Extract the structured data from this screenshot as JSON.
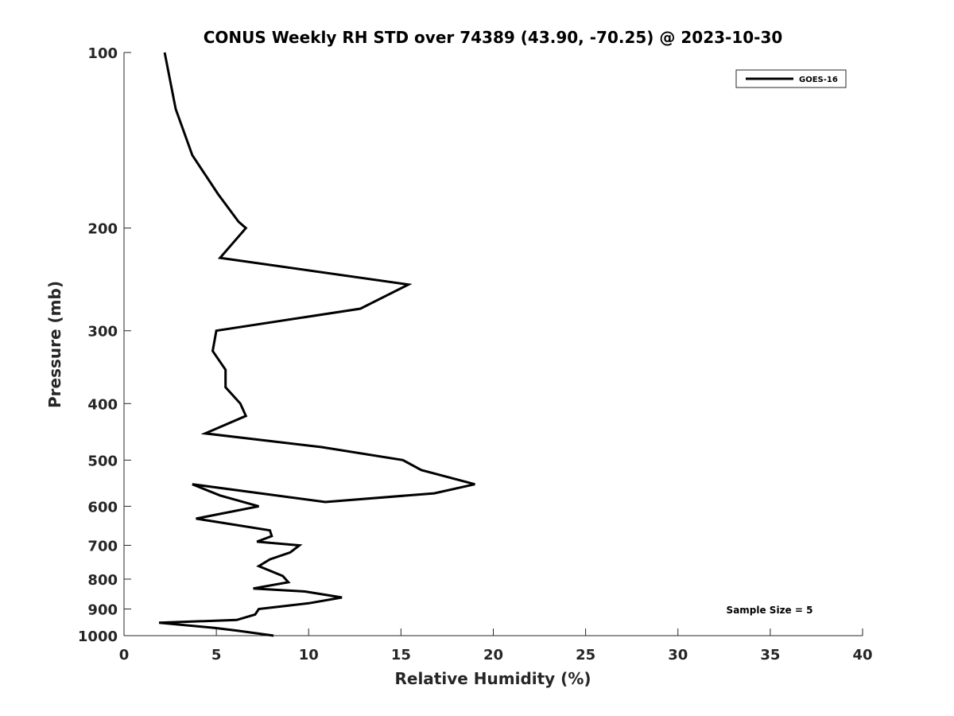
{
  "chart_data": {
    "type": "line",
    "title": "CONUS Weekly RH STD over 74389 (43.90, -70.25) @ 2023-10-30",
    "xlabel": "Relative Humidity (%)",
    "ylabel": "Pressure (mb)",
    "xlim": [
      0,
      40
    ],
    "ylim": [
      100,
      1000
    ],
    "y_scale": "log",
    "y_reversed": true,
    "grid": false,
    "x_ticks": [
      0,
      5,
      10,
      15,
      20,
      25,
      30,
      35,
      40
    ],
    "y_ticks": [
      100,
      200,
      300,
      400,
      500,
      600,
      700,
      800,
      900,
      1000
    ],
    "legend_position": "top-right",
    "series": [
      {
        "name": "GOES-16",
        "color": "#000000",
        "x": [
          2.2,
          2.8,
          3.7,
          5.1,
          6.2,
          6.6,
          5.2,
          15.4,
          12.8,
          5.0,
          4.8,
          5.5,
          5.5,
          6.3,
          6.6,
          4.4,
          10.7,
          15.1,
          16.1,
          19.0,
          16.8,
          10.9,
          3.7,
          5.2,
          7.3,
          3.9,
          7.9,
          8.0,
          7.2,
          9.5,
          9.0,
          7.9,
          7.3,
          8.6,
          8.9,
          7.0,
          9.8,
          11.8,
          10.0,
          7.3,
          7.1,
          6.1,
          1.9,
          4.9,
          6.1,
          8.1
        ],
        "y": [
          100,
          125,
          150,
          175,
          195,
          200,
          225,
          250,
          275,
          300,
          325,
          350,
          375,
          400,
          420,
          450,
          475,
          500,
          520,
          550,
          570,
          590,
          550,
          575,
          600,
          630,
          660,
          675,
          690,
          700,
          720,
          740,
          760,
          790,
          810,
          830,
          840,
          860,
          880,
          900,
          920,
          940,
          950,
          970,
          980,
          1000
        ]
      }
    ],
    "annotations": [
      "Sample Size = 5"
    ]
  }
}
